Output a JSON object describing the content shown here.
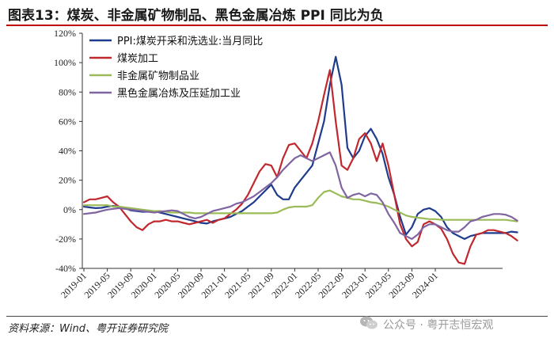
{
  "title": "图表13：煤炭、非金属矿物制品、黑色金属冶炼 PPI 同比为负",
  "source": "资料来源：Wind、粤开证券研究院",
  "watermark": "公众号 · 粤开志恒宏观",
  "chart_data": {
    "type": "line",
    "x_tick_labels": [
      "2019-01",
      "2019-05",
      "2019-09",
      "2020-01",
      "2020-05",
      "2020-09",
      "2021-01",
      "2021-05",
      "2021-09",
      "2022-01",
      "2022-05",
      "2022-09",
      "2023-01",
      "2023-05",
      "2023-09",
      "2024-01"
    ],
    "y_tick_labels": [
      "-40%",
      "-20%",
      "0%",
      "20%",
      "40%",
      "60%",
      "80%",
      "100%",
      "120%"
    ],
    "ylim": [
      -40,
      120
    ],
    "x_start": "2019-01",
    "x_end": "2024-03",
    "legend_position": "top-left",
    "series": [
      {
        "name": "PPI:煤炭开采和洗选业:当月同比",
        "color": "#1f3b8c",
        "values": [
          2.0,
          1.5,
          1.0,
          1.2,
          2.0,
          2.5,
          2.0,
          1.0,
          -0.5,
          -1.0,
          -1.5,
          -1.5,
          -1.0,
          -2.0,
          -3.0,
          -4.0,
          -5.0,
          -6.0,
          -7.0,
          -8.0,
          -9.0,
          -9.5,
          -8.0,
          -7.0,
          -6.0,
          -5.0,
          -3.0,
          -1.0,
          2.0,
          5.0,
          9.0,
          13.0,
          17.0,
          10.0,
          7.0,
          7.0,
          15.0,
          20.0,
          25.0,
          30.0,
          45.0,
          60.0,
          85.0,
          104.0,
          85.0,
          42.0,
          35.0,
          40.0,
          50.0,
          55.0,
          48.0,
          38.0,
          22.0,
          10.0,
          -5.0,
          -17.0,
          -12.0,
          -3.0,
          0.0,
          1.0,
          -1.0,
          -5.0,
          -12.0,
          -16.0,
          -18.0,
          -20.0,
          -18.0,
          -17.0,
          -16.0,
          -16.0,
          -16.0,
          -16.0,
          -16.0,
          -15.0,
          -15.5
        ]
      },
      {
        "name": "煤炭加工",
        "color": "#c0282d",
        "values": [
          5.0,
          7.0,
          7.0,
          8.0,
          9.0,
          5.0,
          2.0,
          -3.0,
          -8.0,
          -12.0,
          -14.0,
          -10.0,
          -8.0,
          -8.0,
          -7.0,
          -8.0,
          -8.0,
          -9.0,
          -10.0,
          -9.0,
          -8.0,
          -7.0,
          -9.0,
          -7.0,
          -6.0,
          -3.0,
          0.0,
          4.0,
          10.0,
          18.0,
          26.0,
          31.0,
          30.0,
          22.0,
          35.0,
          44.0,
          45.0,
          40.0,
          35.0,
          45.0,
          60.0,
          78.0,
          95.0,
          60.0,
          30.0,
          27.0,
          35.0,
          48.0,
          52.0,
          45.0,
          33.0,
          45.0,
          30.0,
          10.0,
          -10.0,
          -20.0,
          -25.0,
          -22.0,
          -10.0,
          -8.0,
          -10.0,
          -13.0,
          -20.0,
          -30.0,
          -36.0,
          -37.0,
          -25.0,
          -17.0,
          -16.0,
          -14.0,
          -14.0,
          -15.0,
          -16.0,
          -18.0,
          -21.0
        ]
      },
      {
        "name": "非金属矿物制品业",
        "color": "#9bbb59",
        "values": [
          3.0,
          3.0,
          3.0,
          3.0,
          3.0,
          2.0,
          2.0,
          1.5,
          1.0,
          0.5,
          0.0,
          -0.5,
          -1.0,
          -1.0,
          -1.5,
          -2.0,
          -2.0,
          -2.0,
          -2.0,
          -2.5,
          -2.5,
          -2.5,
          -2.5,
          -2.5,
          -2.5,
          -2.5,
          -2.5,
          -2.5,
          -2.5,
          -2.5,
          -2.5,
          -2.5,
          -2.5,
          -2.0,
          0.0,
          1.5,
          2.0,
          2.0,
          2.0,
          3.0,
          8.0,
          12.0,
          13.0,
          11.0,
          9.0,
          8.0,
          7.0,
          7.0,
          6.0,
          5.0,
          4.5,
          3.5,
          2.0,
          0.0,
          -2.0,
          -4.0,
          -5.0,
          -5.5,
          -6.0,
          -6.5,
          -6.5,
          -7.0,
          -7.0,
          -7.0,
          -7.0,
          -7.0,
          -7.0,
          -7.0,
          -7.0,
          -7.0,
          -7.0,
          -7.0,
          -7.0,
          -7.5,
          -8.0
        ]
      },
      {
        "name": "黑色金属冶炼及压延加工业",
        "color": "#8064a2",
        "values": [
          -3.0,
          -2.5,
          -2.0,
          -1.0,
          0.0,
          0.5,
          1.0,
          0.5,
          0.0,
          -0.5,
          -1.0,
          -1.5,
          -2.0,
          -1.5,
          -1.0,
          -0.5,
          -1.0,
          -3.0,
          -5.0,
          -6.0,
          -5.0,
          -3.0,
          -1.0,
          0.0,
          1.0,
          2.0,
          4.0,
          5.0,
          7.0,
          9.0,
          12.0,
          15.0,
          18.0,
          22.0,
          27.0,
          31.0,
          35.0,
          37.0,
          35.0,
          33.0,
          35.0,
          37.0,
          39.0,
          30.0,
          15.0,
          8.0,
          10.0,
          11.0,
          9.0,
          11.0,
          10.0,
          5.0,
          -3.0,
          -9.0,
          -16.0,
          -18.0,
          -20.0,
          -17.0,
          -12.0,
          -10.0,
          -10.0,
          -12.0,
          -14.0,
          -15.0,
          -15.0,
          -12.0,
          -8.0,
          -7.0,
          -5.0,
          -4.0,
          -3.0,
          -3.0,
          -3.5,
          -5.0,
          -7.5
        ]
      }
    ]
  }
}
